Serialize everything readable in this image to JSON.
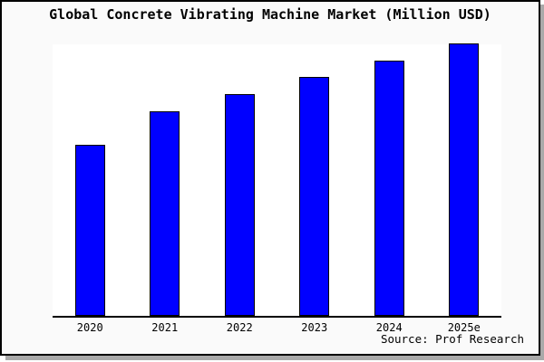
{
  "chart_data": {
    "type": "bar",
    "title": "Global Concrete Vibrating Machine Market (Million USD)",
    "categories": [
      "2020",
      "2021",
      "2022",
      "2023",
      "2024",
      "2025e"
    ],
    "values": [
      100,
      120,
      130,
      140,
      150,
      160
    ],
    "xlabel": "",
    "ylabel": "",
    "ylim": [
      0,
      160.5
    ],
    "y_axis_shown": false,
    "grid": false,
    "legend": null,
    "bar_color": "#0000ff",
    "bar_border_color": "#000000",
    "source": "Source: Prof Research"
  },
  "colors": {
    "frame_background": "#fafafa",
    "plot_background": "#ffffff",
    "frame_border": "#000000",
    "frame_shadow": "#a9a9a9",
    "text": "#000000"
  }
}
